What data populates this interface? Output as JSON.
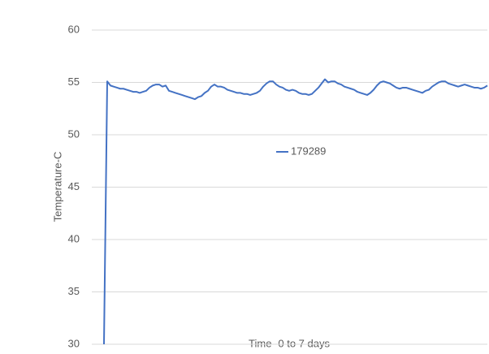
{
  "chart_data": {
    "type": "line",
    "y_label": "Temperature-C",
    "x_label": "Time -0 to 7 days",
    "series": [
      {
        "name": "179289",
        "color": "#4472c4",
        "values": [
          30,
          55.1,
          54.7,
          54.6,
          54.5,
          54.4,
          54.4,
          54.3,
          54.2,
          54.1,
          54.1,
          54.0,
          54.1,
          54.2,
          54.5,
          54.7,
          54.8,
          54.8,
          54.6,
          54.7,
          54.2,
          54.1,
          54.0,
          53.9,
          53.8,
          53.7,
          53.6,
          53.5,
          53.4,
          53.6,
          53.7,
          54.0,
          54.2,
          54.6,
          54.8,
          54.6,
          54.6,
          54.5,
          54.3,
          54.2,
          54.1,
          54.0,
          54.0,
          53.9,
          53.9,
          53.8,
          53.9,
          54.0,
          54.2,
          54.6,
          54.9,
          55.1,
          55.1,
          54.8,
          54.6,
          54.5,
          54.3,
          54.2,
          54.3,
          54.2,
          54.0,
          53.9,
          53.9,
          53.8,
          53.9,
          54.2,
          54.5,
          54.9,
          55.3,
          55.0,
          55.1,
          55.1,
          54.9,
          54.8,
          54.6,
          54.5,
          54.4,
          54.3,
          54.1,
          54.0,
          53.9,
          53.8,
          54.0,
          54.3,
          54.7,
          55.0,
          55.1,
          55.0,
          54.9,
          54.7,
          54.5,
          54.4,
          54.5,
          54.5,
          54.4,
          54.3,
          54.2,
          54.1,
          54.0,
          54.2,
          54.3,
          54.6,
          54.8,
          55.0,
          55.1,
          55.1,
          54.9,
          54.8,
          54.7,
          54.6,
          54.7,
          54.8,
          54.7,
          54.6,
          54.5,
          54.5,
          54.4,
          54.5,
          54.7
        ]
      }
    ],
    "ylim": [
      30,
      60
    ],
    "yticks": [
      30,
      35,
      40,
      45,
      50,
      55,
      60
    ],
    "grid": true,
    "legend": "center"
  }
}
